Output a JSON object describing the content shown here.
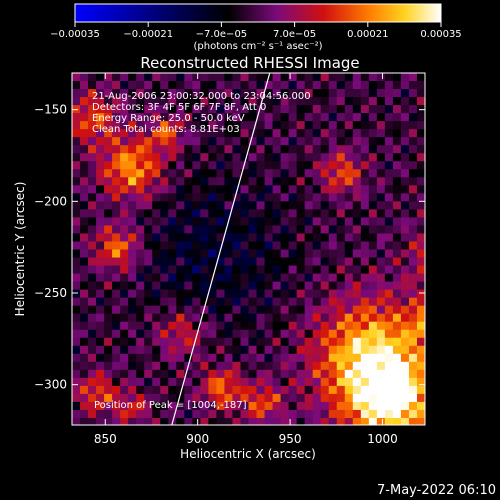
{
  "chart_data": {
    "type": "heatmap",
    "title": "Reconstructed RHESSI Image",
    "xlabel": "Heliocentric X (arcsec)",
    "ylabel": "Heliocentric Y (arcsec)",
    "xlim": [
      832,
      1023
    ],
    "ylim": [
      -322,
      -130
    ],
    "x_ticks": [
      850,
      900,
      950,
      1000
    ],
    "y_ticks": [
      -150,
      -200,
      -250,
      -300
    ],
    "x_tick_labels": [
      "850",
      "900",
      "950",
      "1000"
    ],
    "y_tick_labels": [
      "−150",
      "−200",
      "−250",
      "−300"
    ],
    "colorbar": {
      "min": -0.00035,
      "max": 0.00035,
      "tick_values": [
        -0.00035,
        -0.00021,
        -7e-05,
        7e-05,
        0.00021,
        0.00035
      ],
      "tick_labels": [
        "−0.00035",
        "−0.00021",
        "−7.0e−05",
        "7.0e−05",
        "0.00021",
        "0.00035"
      ],
      "units_label": "(photons cm⁻² s⁻¹ asec⁻²)",
      "colors": [
        "#0000ff",
        "#000000",
        "#7a0a7a",
        "#d01010",
        "#ff7a00",
        "#ffd21e",
        "#ffffff"
      ]
    },
    "annotations": [
      "21-Aug-2006 23:00:32.000 to 23:04:56.000",
      "Detectors: 3F 4F 5F 6F 7F 8F, Att 0",
      "Energy Range: 25.0 - 50.0 keV",
      "Clean    Total counts: 8.81E+03"
    ],
    "peak_label": "Position of Peak = [1004,-187]",
    "peak": [
      1004,
      -187
    ],
    "limb_line": [
      [
        886,
        -322
      ],
      [
        939,
        -130
      ]
    ],
    "grid": false
  },
  "footer": {
    "timestamp": "7-May-2022 06:10"
  }
}
